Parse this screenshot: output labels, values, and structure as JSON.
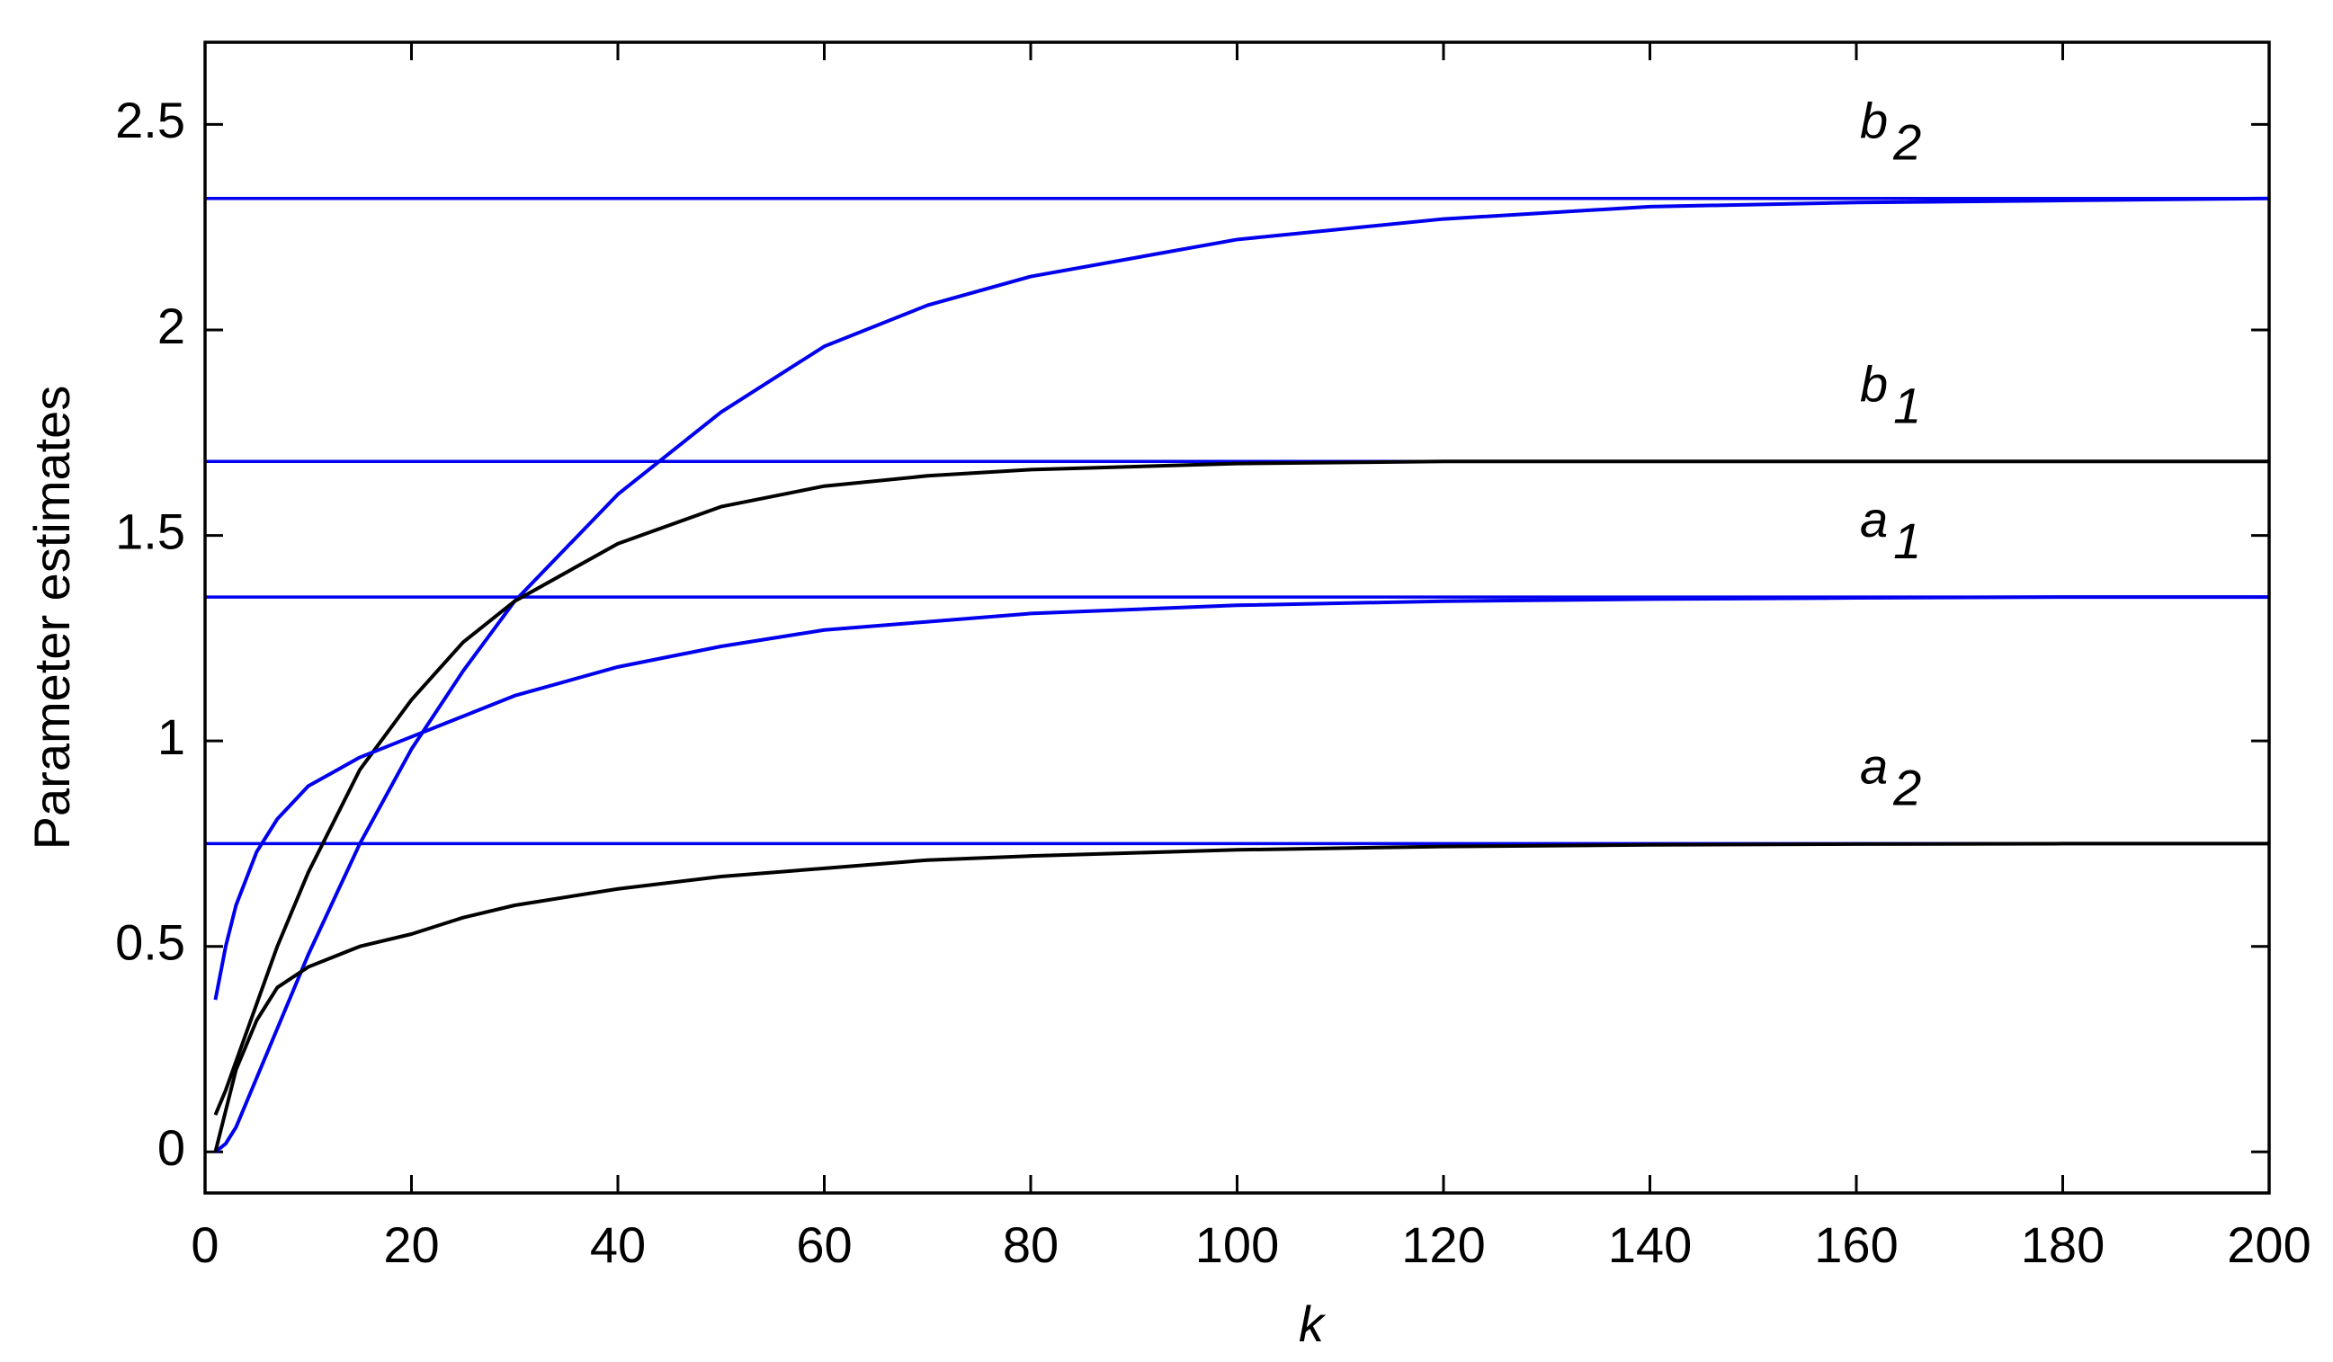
{
  "chart_data": {
    "type": "line",
    "xlabel": "k",
    "ylabel": "Parameter estimates",
    "xlim": [
      0,
      200
    ],
    "xticks": [
      0,
      20,
      40,
      60,
      80,
      100,
      120,
      140,
      160,
      180,
      200
    ],
    "ylim": [
      -0.1,
      2.7
    ],
    "yticks": [
      0,
      0.5,
      1,
      1.5,
      2,
      2.5
    ],
    "x": [
      1,
      2,
      3,
      5,
      7,
      10,
      15,
      20,
      25,
      30,
      40,
      50,
      60,
      70,
      80,
      100,
      120,
      140,
      160,
      180,
      200
    ],
    "series": [
      {
        "color": "#0000ee",
        "values": [
          0,
          0.02,
          0.06,
          0.18,
          0.3,
          0.48,
          0.75,
          0.98,
          1.17,
          1.34,
          1.6,
          1.8,
          1.96,
          2.06,
          2.13,
          2.22,
          2.27,
          2.3,
          2.31,
          2.315,
          2.32
        ]
      },
      {
        "color": "#000000",
        "values": [
          0.09,
          0.15,
          0.22,
          0.36,
          0.5,
          0.68,
          0.93,
          1.1,
          1.24,
          1.34,
          1.48,
          1.57,
          1.62,
          1.645,
          1.66,
          1.675,
          1.68,
          1.68,
          1.68,
          1.68,
          1.68
        ]
      },
      {
        "color": "#0000ee",
        "values": [
          0.37,
          0.5,
          0.6,
          0.73,
          0.81,
          0.89,
          0.96,
          1.01,
          1.06,
          1.11,
          1.18,
          1.23,
          1.27,
          1.29,
          1.31,
          1.33,
          1.34,
          1.345,
          1.348,
          1.35,
          1.35
        ]
      },
      {
        "color": "#000000",
        "values": [
          0,
          0.1,
          0.2,
          0.32,
          0.4,
          0.45,
          0.5,
          0.53,
          0.57,
          0.6,
          0.64,
          0.67,
          0.69,
          0.71,
          0.72,
          0.735,
          0.743,
          0.747,
          0.749,
          0.75,
          0.75
        ]
      }
    ],
    "hlines": [
      {
        "value": 2.32,
        "color": "#0000ee",
        "label": "b",
        "subscript": "2"
      },
      {
        "value": 1.68,
        "color": "#0000ee",
        "label": "b",
        "subscript": "1"
      },
      {
        "value": 1.35,
        "color": "#0000ee",
        "label": "a",
        "subscript": "1"
      },
      {
        "value": 0.75,
        "color": "#0000ee",
        "label": "a",
        "subscript": "2"
      }
    ]
  }
}
